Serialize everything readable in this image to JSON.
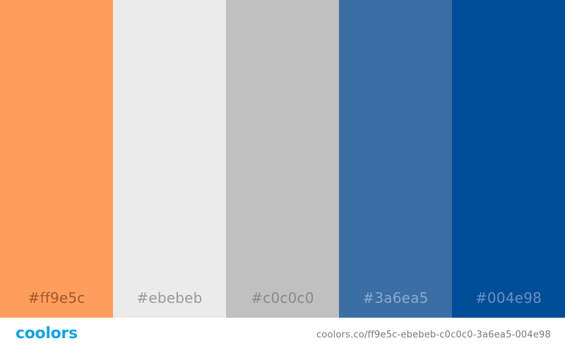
{
  "palette": {
    "colors": [
      {
        "hex": "#ff9e5c",
        "label": "#ff9e5c",
        "label_color": "#a05a2e"
      },
      {
        "hex": "#ebebeb",
        "label": "#ebebeb",
        "label_color": "#9a9a9a"
      },
      {
        "hex": "#c0c0c0",
        "label": "#c0c0c0",
        "label_color": "#8a8a8a"
      },
      {
        "hex": "#3a6ea5",
        "label": "#3a6ea5",
        "label_color": "#8aa9cc"
      },
      {
        "hex": "#004e98",
        "label": "#004e98",
        "label_color": "#6f8fbf"
      }
    ]
  },
  "footer": {
    "logo_text": "coolors",
    "url_text": "coolors.co/ff9e5c-ebebeb-c0c0c0-3a6ea5-004e98"
  }
}
